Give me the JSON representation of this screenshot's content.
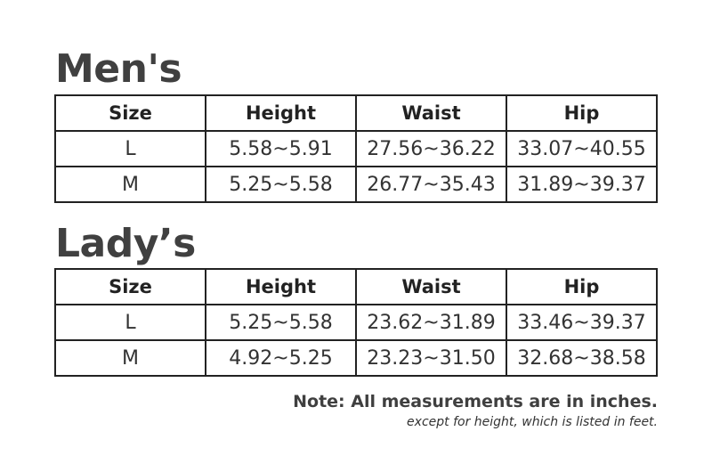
{
  "sections": [
    {
      "title": "Men's",
      "headers": [
        "Size",
        "Height",
        "Waist",
        "Hip"
      ],
      "rows": [
        [
          "L",
          "5.58~5.91",
          "27.56~36.22",
          "33.07~40.55"
        ],
        [
          "M",
          "5.25~5.58",
          "26.77~35.43",
          "31.89~39.37"
        ]
      ]
    },
    {
      "title": "Lady’s",
      "headers": [
        "Size",
        "Height",
        "Waist",
        "Hip"
      ],
      "rows": [
        [
          "L",
          "5.25~5.58",
          "23.62~31.89",
          "33.46~39.37"
        ],
        [
          "M",
          "4.92~5.25",
          "23.23~31.50",
          "32.68~38.58"
        ]
      ]
    }
  ],
  "note": {
    "main": "Note: All measurements are in inches.",
    "sub": "except for height, which is listed in feet."
  }
}
